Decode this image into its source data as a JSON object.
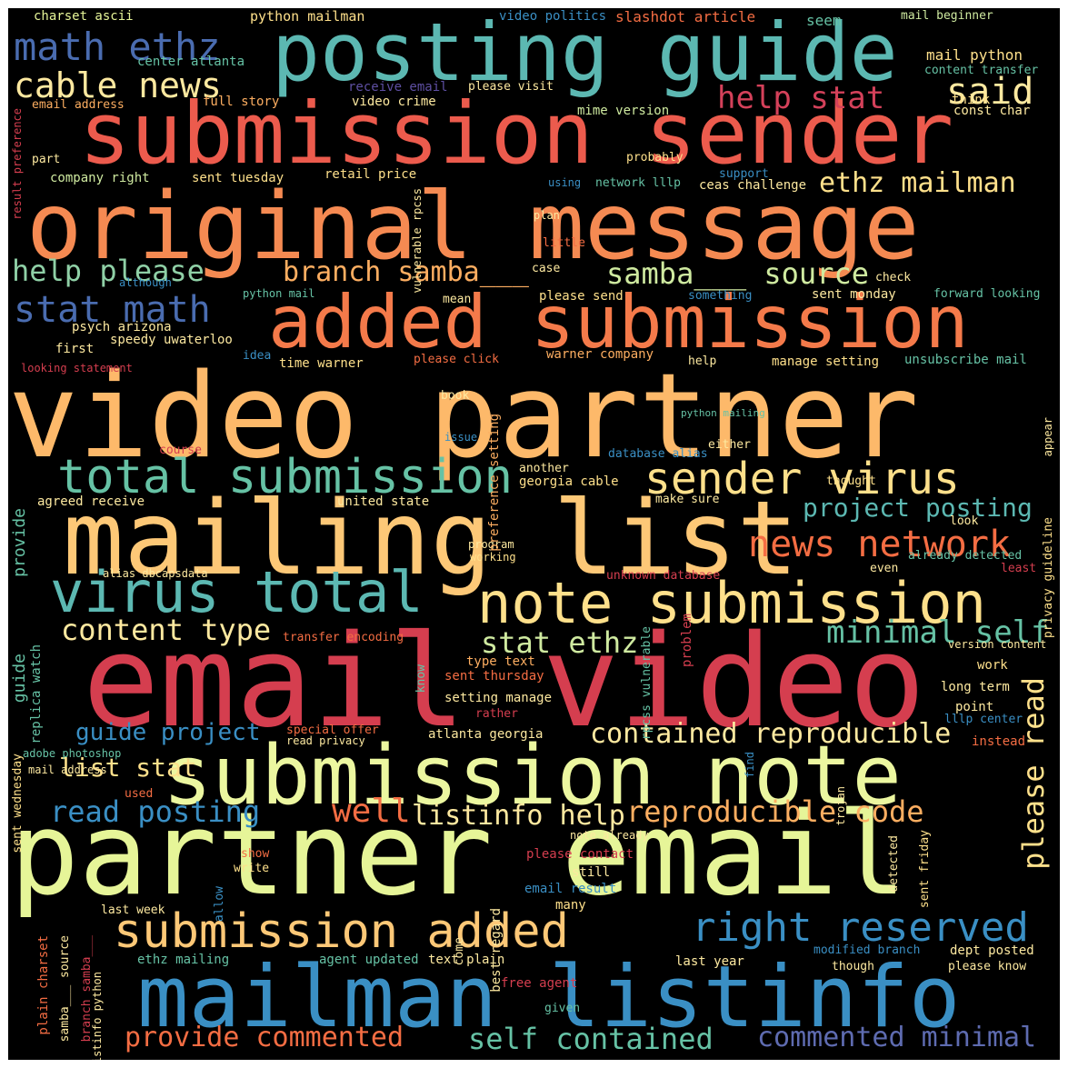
{
  "colors": {
    "background": "#000000",
    "red": "#d53e4f",
    "orange_red": "#f46d43",
    "orange": "#fdae61",
    "light_orange": "#fee08b",
    "yellow_green": "#e6f598",
    "teal": "#66c2a5",
    "blue": "#3288bd",
    "indigo": "#5e4fa2"
  },
  "words": [
    {
      "text": "posting guide",
      "color": "#5cb8b2"
    },
    {
      "text": "submission sender",
      "color": "#ec5b4d"
    },
    {
      "text": "original message",
      "color": "#f58a52"
    },
    {
      "text": "added submission",
      "color": "#f47a4a"
    },
    {
      "text": "video partner",
      "color": "#fdb96a"
    },
    {
      "text": "mailing list",
      "color": "#fdc877"
    },
    {
      "text": "email video",
      "color": "#d53e4f"
    },
    {
      "text": "submission note",
      "color": "#ecf7a0"
    },
    {
      "text": "partner email",
      "color": "#e6f598"
    },
    {
      "text": "mailman listinfo",
      "color": "#3a8fc4"
    },
    {
      "text": "math ethz",
      "color": "#4a6cb0"
    },
    {
      "text": "cable news",
      "color": "#fde9a0"
    },
    {
      "text": "help stat",
      "color": "#d4415a"
    },
    {
      "text": "said",
      "color": "#fde9a0"
    },
    {
      "text": "stat math",
      "color": "#4a6cb0"
    },
    {
      "text": "help please",
      "color": "#8fd0a6"
    },
    {
      "text": "branch samba___",
      "color": "#fdae61"
    },
    {
      "text": "samba___ source",
      "color": "#cfeaa0"
    },
    {
      "text": "ethz mailman",
      "color": "#fee08b"
    },
    {
      "text": "total submission",
      "color": "#66c2a5"
    },
    {
      "text": "sender virus",
      "color": "#fee08b"
    },
    {
      "text": "virus total",
      "color": "#5cb8b2"
    },
    {
      "text": "note submission",
      "color": "#fee08b"
    },
    {
      "text": "news network",
      "color": "#f46d43"
    },
    {
      "text": "content type",
      "color": "#fde9a0"
    },
    {
      "text": "stat ethz",
      "color": "#cfeaa0"
    },
    {
      "text": "minimal self",
      "color": "#66c2a5"
    },
    {
      "text": "project posting",
      "color": "#5cb8b2"
    },
    {
      "text": "contained reproducible",
      "color": "#fde9a0"
    },
    {
      "text": "guide project",
      "color": "#3a8fc4"
    },
    {
      "text": "list stat",
      "color": "#fee08b"
    },
    {
      "text": "read posting",
      "color": "#3a8fc4"
    },
    {
      "text": "well",
      "color": "#f46d43"
    },
    {
      "text": "listinfo help",
      "color": "#fde9a0"
    },
    {
      "text": "reproducible code",
      "color": "#fdae61"
    },
    {
      "text": "please read",
      "color": "#fee08b"
    },
    {
      "text": "submission added",
      "color": "#fdc877"
    },
    {
      "text": "right reserved",
      "color": "#3a8fc4"
    },
    {
      "text": "provide commented",
      "color": "#f46d43"
    },
    {
      "text": "self contained",
      "color": "#66c2a5"
    },
    {
      "text": "commented minimal",
      "color": "#5e6bb0"
    },
    {
      "text": "charset ascii",
      "color": "#e6f598"
    },
    {
      "text": "python mailman",
      "color": "#fee08b"
    },
    {
      "text": "video politics",
      "color": "#3a8fc4"
    },
    {
      "text": "slashdot article",
      "color": "#f46d43"
    },
    {
      "text": "seem",
      "color": "#66c2a5"
    },
    {
      "text": "mail beginner",
      "color": "#cfeaa0"
    },
    {
      "text": "center atlanta",
      "color": "#66c2a5"
    },
    {
      "text": "mail python",
      "color": "#fee08b"
    },
    {
      "text": "content transfer",
      "color": "#66c2a5"
    },
    {
      "text": "receive email",
      "color": "#5e4fa2"
    },
    {
      "text": "please visit",
      "color": "#fde9a0"
    },
    {
      "text": "think",
      "color": "#fee08b"
    },
    {
      "text": "email address",
      "color": "#fdae61"
    },
    {
      "text": "full story",
      "color": "#fdae61"
    },
    {
      "text": "video crime",
      "color": "#fde9a0"
    },
    {
      "text": "mime version",
      "color": "#cfeaa0"
    },
    {
      "text": "const char",
      "color": "#fde9a0"
    },
    {
      "text": "company right",
      "color": "#cfeaa0"
    },
    {
      "text": "sent tuesday",
      "color": "#fee08b"
    },
    {
      "text": "retail price",
      "color": "#fee08b"
    },
    {
      "text": "probably",
      "color": "#fee08b"
    },
    {
      "text": "using",
      "color": "#3a8fc4"
    },
    {
      "text": "network lllp",
      "color": "#66c2a5"
    },
    {
      "text": "support",
      "color": "#3a8fc4"
    },
    {
      "text": "ceas challenge",
      "color": "#fde9a0"
    },
    {
      "text": "plan",
      "color": "#fde9a0"
    },
    {
      "text": "little",
      "color": "#f46d43"
    },
    {
      "text": "case",
      "color": "#fde9a0"
    },
    {
      "text": "mean",
      "color": "#fde9a0"
    },
    {
      "text": "please send",
      "color": "#fee08b"
    },
    {
      "text": "something",
      "color": "#3a8fc4"
    },
    {
      "text": "sent monday",
      "color": "#fde9a0"
    },
    {
      "text": "forward looking",
      "color": "#66c2a5"
    },
    {
      "text": "check",
      "color": "#fde9a0"
    },
    {
      "text": "python mail",
      "color": "#66c2a5"
    },
    {
      "text": "psych arizona",
      "color": "#fde9a0"
    },
    {
      "text": "speedy uwaterloo",
      "color": "#fde9a0"
    },
    {
      "text": "first",
      "color": "#fde9a0"
    },
    {
      "text": "looking statement",
      "color": "#d53e4f"
    },
    {
      "text": "idea",
      "color": "#3a8fc4"
    },
    {
      "text": "time warner",
      "color": "#fee08b"
    },
    {
      "text": "please click",
      "color": "#f46d43"
    },
    {
      "text": "warner company",
      "color": "#fdae61"
    },
    {
      "text": "help",
      "color": "#fde9a0"
    },
    {
      "text": "manage setting",
      "color": "#fee08b"
    },
    {
      "text": "unsubscribe mail",
      "color": "#66c2a5"
    },
    {
      "text": "although",
      "color": "#3a8fc4"
    },
    {
      "text": "vulnerable rpcss",
      "color": "#fde9a0"
    },
    {
      "text": "book",
      "color": "#fde9a0"
    },
    {
      "text": "issue",
      "color": "#3a8fc4"
    },
    {
      "text": "python mailing",
      "color": "#66c2a5"
    },
    {
      "text": "course",
      "color": "#d53e4f"
    },
    {
      "text": "database alias",
      "color": "#3a8fc4"
    },
    {
      "text": "either",
      "color": "#fde9a0"
    },
    {
      "text": "another",
      "color": "#fde9a0"
    },
    {
      "text": "georgia cable",
      "color": "#fee08b"
    },
    {
      "text": "thought",
      "color": "#fee08b"
    },
    {
      "text": "agreed receive",
      "color": "#fde9a0"
    },
    {
      "text": "united state",
      "color": "#fde9a0"
    },
    {
      "text": "make sure",
      "color": "#fde9a0"
    },
    {
      "text": "look",
      "color": "#fde9a0"
    },
    {
      "text": "program",
      "color": "#fde9a0"
    },
    {
      "text": "working",
      "color": "#fee08b"
    },
    {
      "text": "alias dbcapsdata",
      "color": "#fde9a0"
    },
    {
      "text": "even",
      "color": "#fde9a0"
    },
    {
      "text": "already detected",
      "color": "#66c2a5"
    },
    {
      "text": "least",
      "color": "#d53e4f"
    },
    {
      "text": "unknown database",
      "color": "#d53e4f"
    },
    {
      "text": "type text",
      "color": "#fdae61"
    },
    {
      "text": "transfer encoding",
      "color": "#f46d43"
    },
    {
      "text": "work",
      "color": "#fee08b"
    },
    {
      "text": "version content",
      "color": "#fde9a0"
    },
    {
      "text": "long term",
      "color": "#fde9a0"
    },
    {
      "text": "sent thursday",
      "color": "#f46d43"
    },
    {
      "text": "setting manage",
      "color": "#fde9a0"
    },
    {
      "text": "point",
      "color": "#fde9a0"
    },
    {
      "text": "lllp center",
      "color": "#3a8fc4"
    },
    {
      "text": "rather",
      "color": "#d53e4f"
    },
    {
      "text": "atlanta georgia",
      "color": "#fde9a0"
    },
    {
      "text": "special offer",
      "color": "#f46d43"
    },
    {
      "text": "read privacy",
      "color": "#fde9a0"
    },
    {
      "text": "instead",
      "color": "#f46d43"
    },
    {
      "text": "adobe photoshop",
      "color": "#66c2a5"
    },
    {
      "text": "mail address",
      "color": "#fde9a0"
    },
    {
      "text": "used",
      "color": "#f46d43"
    },
    {
      "text": "note already",
      "color": "#fde9a0"
    },
    {
      "text": "please contact",
      "color": "#d53e4f"
    },
    {
      "text": "still",
      "color": "#fde9a0"
    },
    {
      "text": "show",
      "color": "#f46d43"
    },
    {
      "text": "write",
      "color": "#fee08b"
    },
    {
      "text": "email result",
      "color": "#3a8fc4"
    },
    {
      "text": "last week",
      "color": "#fde9a0"
    },
    {
      "text": "many",
      "color": "#fee08b"
    },
    {
      "text": "ethz mailing",
      "color": "#66c2a5"
    },
    {
      "text": "agent updated",
      "color": "#66c2a5"
    },
    {
      "text": "text plain",
      "color": "#fde9a0"
    },
    {
      "text": "free agent",
      "color": "#d53e4f"
    },
    {
      "text": "last year",
      "color": "#fde9a0"
    },
    {
      "text": "modified branch",
      "color": "#3a8fc4"
    },
    {
      "text": "dept posted",
      "color": "#fde9a0"
    },
    {
      "text": "though",
      "color": "#fde9a0"
    },
    {
      "text": "please know",
      "color": "#fde9a0"
    },
    {
      "text": "given",
      "color": "#66c2a5"
    },
    {
      "text": "result preference",
      "color": "#d53e4f"
    },
    {
      "text": "part",
      "color": "#fde9a0"
    },
    {
      "text": "provide",
      "color": "#66c2a5"
    },
    {
      "text": "guide",
      "color": "#66c2a5"
    },
    {
      "text": "replica watch",
      "color": "#66c2a5"
    },
    {
      "text": "sent wednesday",
      "color": "#fee08b"
    },
    {
      "text": "plain charset",
      "color": "#f46d43"
    },
    {
      "text": "branch samba___",
      "color": "#d53e4f"
    },
    {
      "text": "samba___ source",
      "color": "#fde9a0"
    },
    {
      "text": "listinfo python",
      "color": "#fde9a0"
    },
    {
      "text": "preference setting",
      "color": "#fdae61"
    },
    {
      "text": "best regard",
      "color": "#fde9a0"
    },
    {
      "text": "come",
      "color": "#fde9a0"
    },
    {
      "text": "know",
      "color": "#66c2a5"
    },
    {
      "text": "rpcss vulnerable",
      "color": "#66c2a5"
    },
    {
      "text": "problem",
      "color": "#d53e4f"
    },
    {
      "text": "find",
      "color": "#3a8fc4"
    },
    {
      "text": "trojan",
      "color": "#fde9a0"
    },
    {
      "text": "detected",
      "color": "#fde9a0"
    },
    {
      "text": "sent friday",
      "color": "#fee08b"
    },
    {
      "text": "privacy guideline",
      "color": "#fee08b"
    },
    {
      "text": "appear",
      "color": "#fde9a0"
    },
    {
      "text": "allow",
      "color": "#3a8fc4"
    }
  ]
}
